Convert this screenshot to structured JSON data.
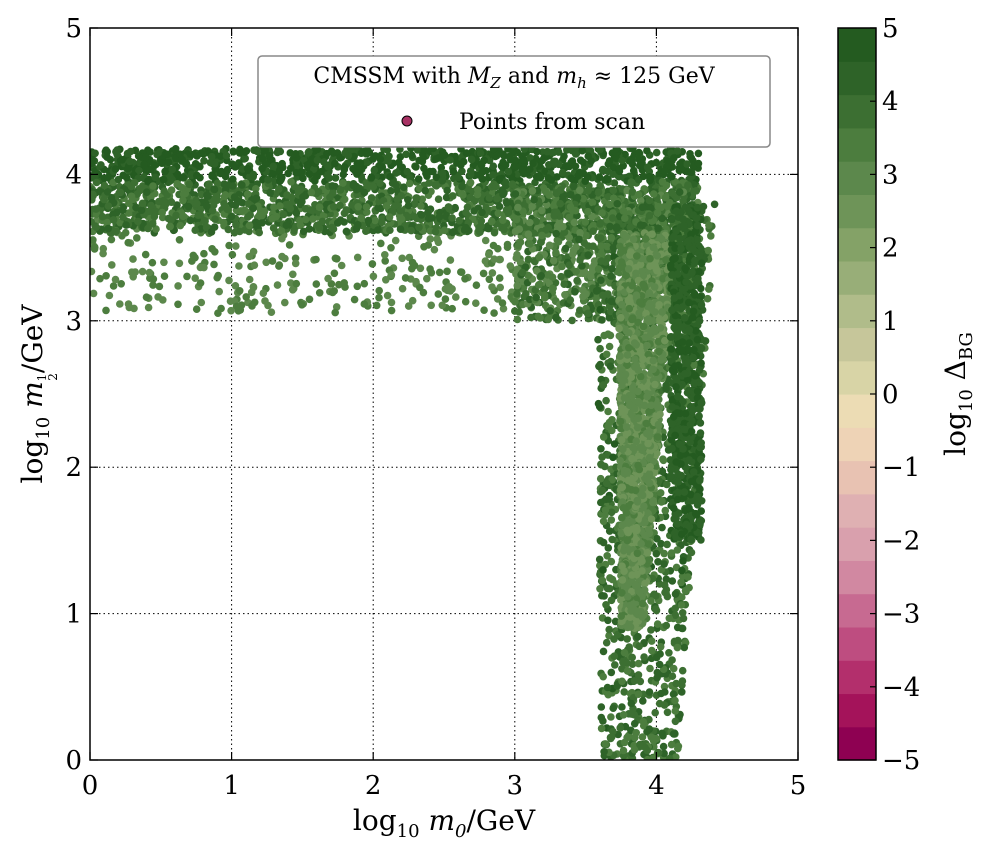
{
  "chart_data": {
    "type": "scatter",
    "title": "",
    "legend": {
      "title": "CMSSM with M_Z and m_h ≈ 125 GeV",
      "title_parts": [
        "CMSSM with ",
        "M",
        "Z",
        " and ",
        "m",
        "h",
        " ≈ 125 GeV"
      ],
      "entry": "Points from scan",
      "marker_color": "#a83264",
      "placement": "top-right"
    },
    "xlabel": "log10 m0/GeV",
    "xlabel_parts": [
      "log",
      "10",
      " m",
      "0",
      "/GeV"
    ],
    "ylabel": "log10 m1/2/GeV",
    "ylabel_parts": [
      "log",
      "10",
      " m",
      "1",
      "2",
      "/GeV"
    ],
    "xlim": [
      0,
      5
    ],
    "ylim": [
      0,
      5
    ],
    "xticks": [
      "0",
      "1",
      "2",
      "3",
      "4",
      "5"
    ],
    "yticks": [
      "0",
      "1",
      "2",
      "3",
      "4",
      "5"
    ],
    "grid": true,
    "colorbar": {
      "label": "log10 ΔBG",
      "label_parts": [
        "log",
        "10",
        " Δ",
        "BG"
      ],
      "range": [
        -5,
        5
      ],
      "ticks": [
        "−5",
        "−4",
        "−3",
        "−2",
        "−1",
        "0",
        "1",
        "2",
        "3",
        "4",
        "5"
      ],
      "colors": [
        "#8e0152",
        "#a4135a",
        "#b32f6c",
        "#be4d80",
        "#c76a91",
        "#d188a1",
        "#d9a0ad",
        "#dfb0b2",
        "#e8c2b2",
        "#eed3b6",
        "#ecdcb4",
        "#d8d4a6",
        "#c6c69a",
        "#b0bc8a",
        "#98ae78",
        "#84a267",
        "#6e9458",
        "#5c884c",
        "#4c7d3e",
        "#3c6f32",
        "#2e6328",
        "#245b20"
      ]
    },
    "regions": [
      {
        "name": "horizontal-band",
        "x": [
          0.0,
          4.3
        ],
        "y": [
          3.0,
          4.2
        ],
        "color_value": [
          3.0,
          4.8
        ]
      },
      {
        "name": "vertical-funnel",
        "x": [
          3.55,
          4.35
        ],
        "y": [
          0.0,
          3.9
        ],
        "color_value": [
          2.4,
          4.6
        ]
      }
    ]
  }
}
